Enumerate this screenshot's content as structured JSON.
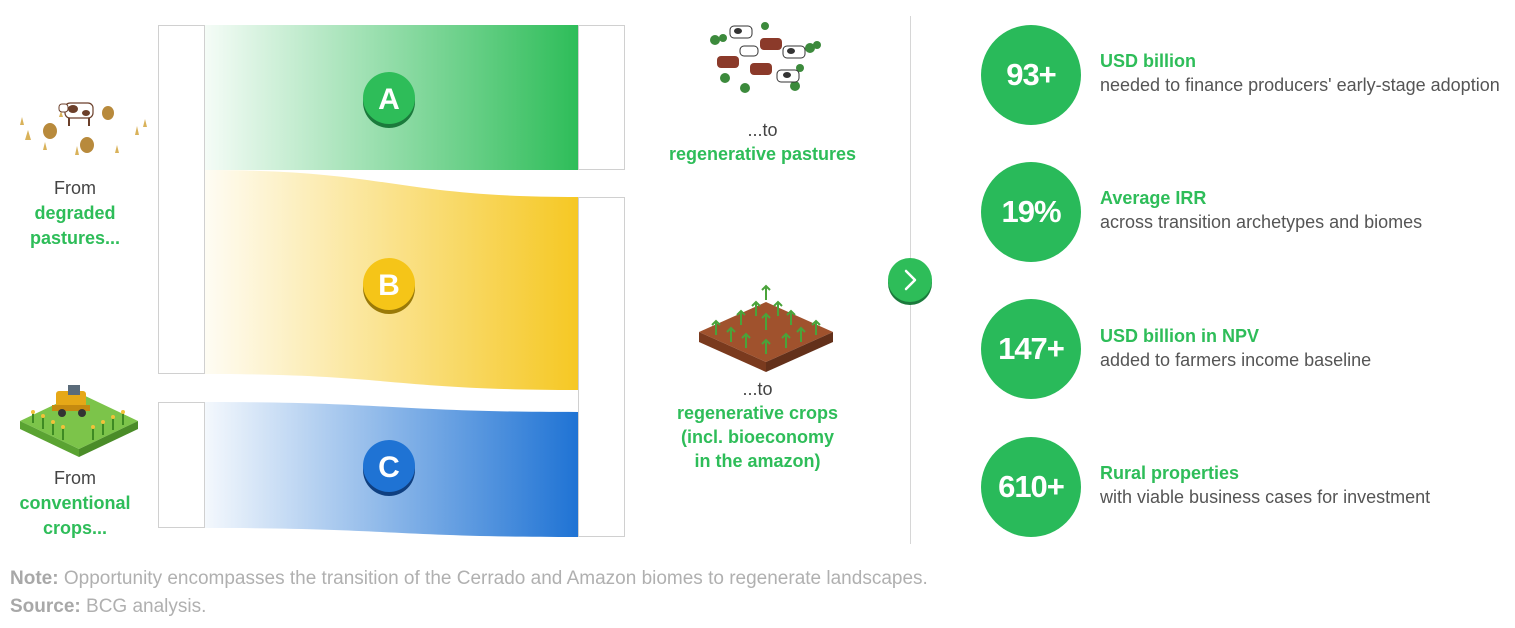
{
  "sources": [
    {
      "prefix": "From",
      "highlight_line1": "degraded",
      "highlight_line2": "pastures..."
    },
    {
      "prefix": "From",
      "highlight_line1": "conventional",
      "highlight_line2": "crops..."
    }
  ],
  "flows": [
    {
      "letter": "A",
      "color": "#2ebd59"
    },
    {
      "letter": "B",
      "color": "#f5c518"
    },
    {
      "letter": "C",
      "color": "#1f73d4"
    }
  ],
  "destinations": [
    {
      "prefix": "...to",
      "highlight_lines": [
        "regenerative pastures"
      ]
    },
    {
      "prefix": "...to",
      "highlight_lines": [
        "regenerative crops",
        "(incl. bioeconomy",
        "in the amazon)"
      ]
    }
  ],
  "arrow_icon": "chevron-right-icon",
  "stats": [
    {
      "value": "93+",
      "title": "USD billion",
      "desc": "needed to finance producers' early-stage adoption"
    },
    {
      "value": "19%",
      "title": "Average IRR",
      "desc": "across transition archetypes and biomes"
    },
    {
      "value": "147+",
      "title": "USD billion in NPV",
      "desc": "added to farmers income baseline"
    },
    {
      "value": "610+",
      "title": "Rural properties",
      "desc": "with viable business cases for investment"
    }
  ],
  "footer": {
    "note_label": "Note:",
    "note_text": "Opportunity encompasses the transition of the Cerrado and Amazon biomes to regenerate landscapes.",
    "source_label": "Source:",
    "source_text": "BCG analysis."
  }
}
